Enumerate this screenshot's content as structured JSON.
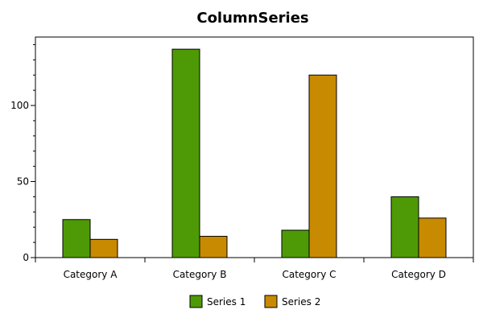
{
  "chart_data": {
    "type": "bar",
    "title": "ColumnSeries",
    "xlabel": "",
    "ylabel": "",
    "categories": [
      "Category A",
      "Category B",
      "Category C",
      "Category D"
    ],
    "series": [
      {
        "name": "Series 1",
        "color": "#4e9a06",
        "values": [
          25,
          137,
          18,
          40
        ]
      },
      {
        "name": "Series 2",
        "color": "#c88a00",
        "values": [
          12,
          14,
          120,
          26
        ]
      }
    ],
    "ylim": [
      0,
      145
    ],
    "yticks": [
      0,
      50,
      100
    ],
    "ytick_labels": [
      "0",
      "50",
      "100"
    ],
    "minor_tick_step": 10,
    "grid": false,
    "legend": "bottom-center"
  }
}
